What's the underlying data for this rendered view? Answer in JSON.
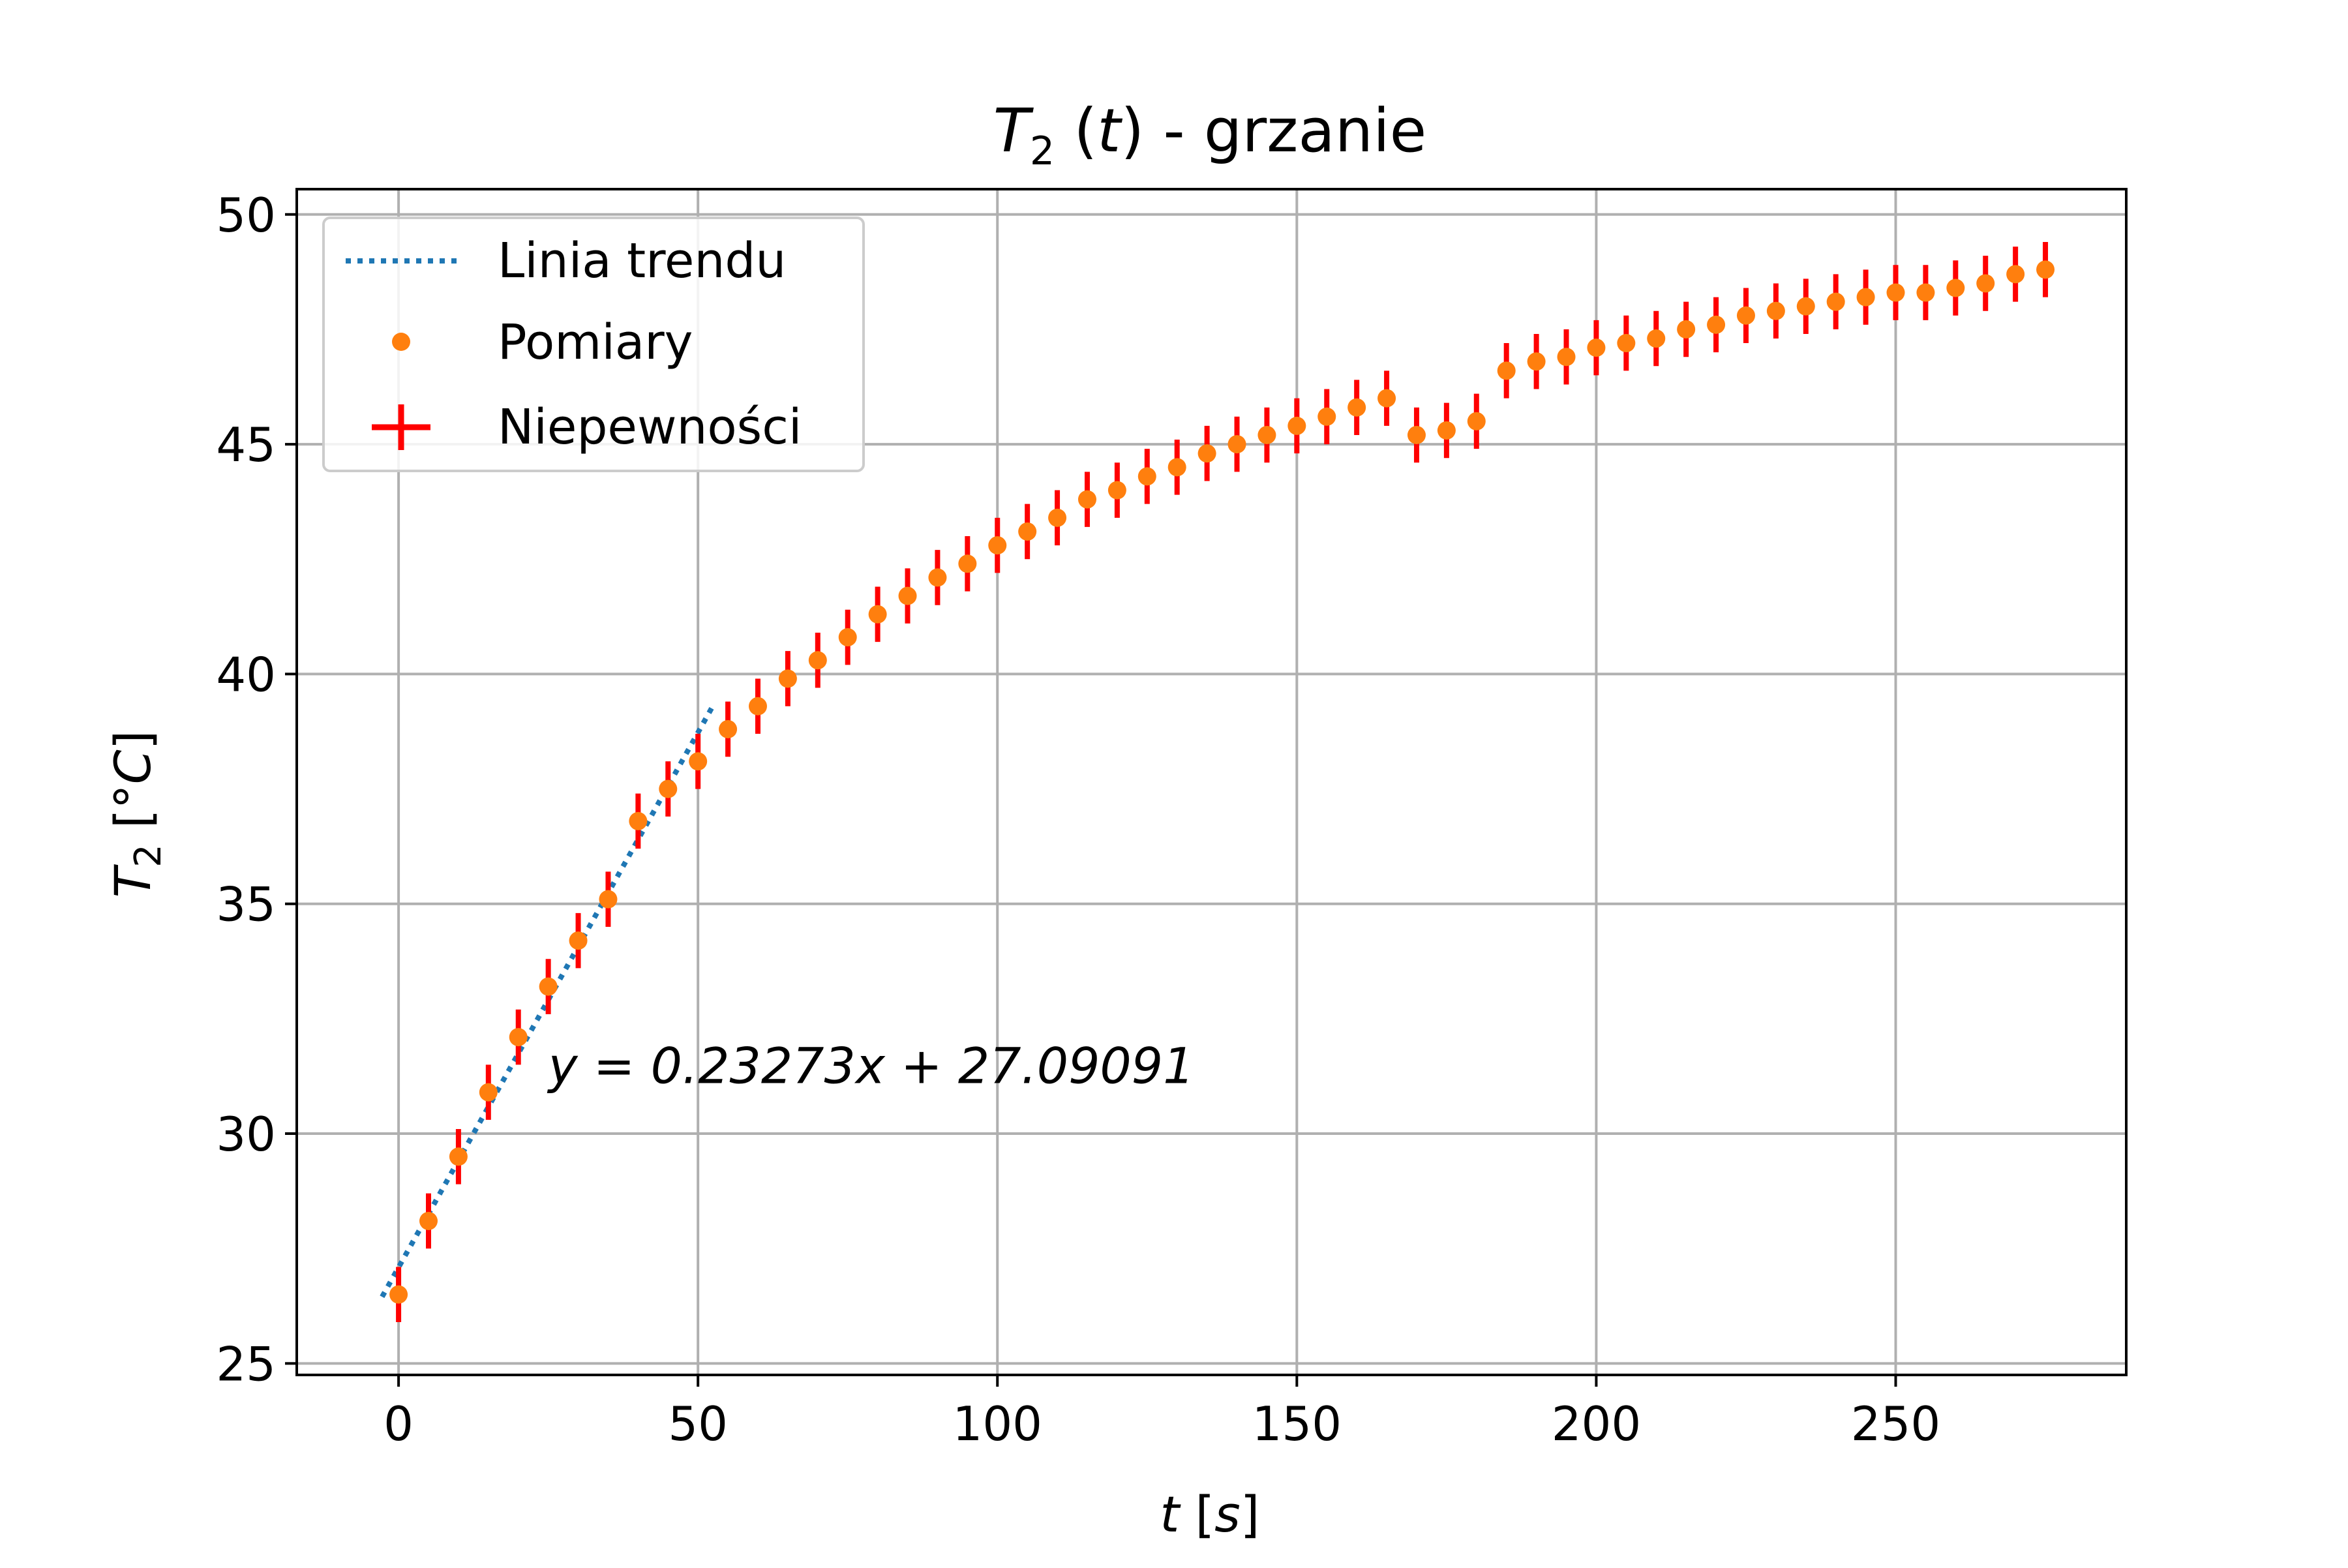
{
  "chart_data": {
    "type": "scatter",
    "title": "T₂ (t) - grzanie",
    "title_parts": {
      "symbol": "T",
      "subscript": "2",
      "var": "t",
      "rest": " - grzanie"
    },
    "xlabel": "t [s]",
    "xlabel_parts": {
      "symbol": "t",
      "unit": "s"
    },
    "ylabel": "T₂ [°C]",
    "ylabel_parts": {
      "symbol": "T",
      "subscript": "2",
      "unit_prefix": "°",
      "unit_symbol": "C"
    },
    "xlim": [
      -17,
      288.5
    ],
    "ylim": [
      24.75,
      50.55
    ],
    "xticks": [
      0,
      50,
      100,
      150,
      200,
      250
    ],
    "yticks": [
      25,
      30,
      35,
      40,
      45,
      50
    ],
    "grid": true,
    "legend_position": "top-left",
    "legend": [
      {
        "label": "Linia trendu",
        "kind": "line",
        "color": "#1f77b4",
        "style": "dotted"
      },
      {
        "label": "Pomiary",
        "kind": "marker",
        "color": "#ff7f0e"
      },
      {
        "label": "Niepewności",
        "kind": "errorbar",
        "color": "#ff0000"
      }
    ],
    "annotation": {
      "text": "y = 0.23273x + 27.09091",
      "x": 25,
      "y": 31.1
    },
    "series": [
      {
        "name": "Pomiary",
        "color": "#ff7f0e",
        "error_color": "#ff0000",
        "y_error": 0.6,
        "x": [
          0,
          5,
          10,
          15,
          20,
          25,
          30,
          35,
          40,
          45,
          50,
          55,
          60,
          65,
          70,
          75,
          80,
          85,
          90,
          95,
          100,
          105,
          110,
          115,
          120,
          125,
          130,
          135,
          140,
          145,
          150,
          155,
          160,
          165,
          170,
          175,
          180,
          185,
          190,
          195,
          200,
          205,
          210,
          215,
          220,
          225,
          230,
          235,
          240,
          245,
          250,
          255,
          260,
          265,
          270,
          275
        ],
        "y": [
          26.5,
          28.1,
          29.5,
          30.9,
          32.1,
          33.2,
          34.2,
          35.1,
          36.8,
          37.5,
          38.1,
          38.8,
          39.3,
          39.9,
          40.3,
          40.8,
          41.3,
          41.7,
          42.1,
          42.4,
          42.8,
          43.1,
          43.4,
          43.8,
          44.0,
          44.3,
          44.5,
          44.8,
          45.0,
          45.2,
          45.4,
          45.6,
          45.8,
          46.0,
          45.2,
          45.3,
          45.5,
          46.6,
          46.8,
          46.9,
          47.1,
          47.2,
          47.3,
          47.5,
          47.6,
          47.8,
          47.9,
          48.0,
          48.1,
          48.2,
          48.3,
          48.3,
          48.4,
          48.5,
          48.7,
          48.8
        ]
      }
    ],
    "trend_line": {
      "name": "Linia trendu",
      "color": "#1f77b4",
      "slope": 0.23273,
      "intercept": 27.09091,
      "x_range": [
        -2.75,
        52.75
      ]
    }
  }
}
